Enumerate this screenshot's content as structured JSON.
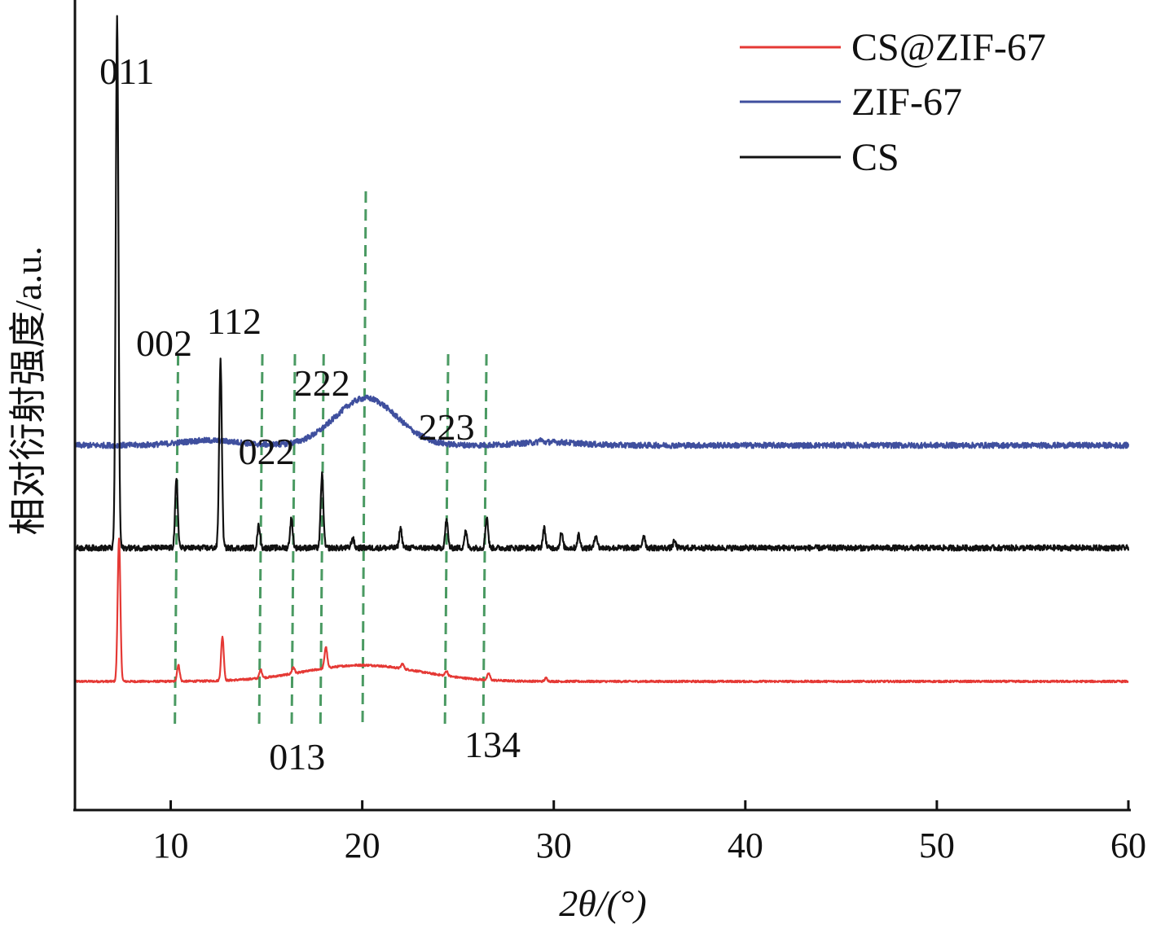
{
  "chart_data": {
    "type": "line",
    "title": "",
    "xlabel": "2θ/(°)",
    "ylabel": "相对衍射强度/a.u.",
    "xlim": [
      5,
      60
    ],
    "xticks": [
      10,
      20,
      30,
      40,
      50,
      60
    ],
    "yticks_shown": false,
    "grid": false,
    "legend_position": "top-right",
    "series": [
      {
        "name": "CS@ZIF-67",
        "color": "#e53935",
        "baseline": 0.1,
        "peaks": [
          {
            "x": 7.3,
            "height": 0.88
          },
          {
            "x": 10.4,
            "height": 0.1
          },
          {
            "x": 12.7,
            "height": 0.27
          },
          {
            "x": 14.7,
            "height": 0.05
          },
          {
            "x": 16.4,
            "height": 0.04
          },
          {
            "x": 18.1,
            "height": 0.13
          },
          {
            "x": 22.1,
            "height": 0.03
          },
          {
            "x": 24.4,
            "height": 0.03
          },
          {
            "x": 26.6,
            "height": 0.04
          },
          {
            "x": 29.6,
            "height": 0.02
          }
        ],
        "humps": [
          {
            "x": 20.0,
            "height": 0.1,
            "width": 3.0
          }
        ]
      },
      {
        "name": "ZIF-67",
        "color": "#3f4f9e",
        "baseline": 1.55,
        "peaks": [
          {
            "x": 29.3,
            "height": 0.02
          }
        ],
        "humps": [
          {
            "x": 20.2,
            "height": 0.29,
            "width": 1.6
          },
          {
            "x": 12.0,
            "height": 0.03,
            "width": 1.5
          },
          {
            "x": 29.8,
            "height": 0.02,
            "width": 1.5
          }
        ]
      },
      {
        "name": "CS",
        "color": "#111111",
        "baseline": 0.92,
        "peaks": [
          {
            "x": 7.2,
            "height": 3.25
          },
          {
            "x": 10.3,
            "height": 0.42
          },
          {
            "x": 12.6,
            "height": 1.15
          },
          {
            "x": 14.6,
            "height": 0.14
          },
          {
            "x": 16.3,
            "height": 0.18
          },
          {
            "x": 17.9,
            "height": 0.45
          },
          {
            "x": 19.5,
            "height": 0.06
          },
          {
            "x": 22.0,
            "height": 0.12
          },
          {
            "x": 24.4,
            "height": 0.17
          },
          {
            "x": 25.4,
            "height": 0.1
          },
          {
            "x": 26.5,
            "height": 0.19
          },
          {
            "x": 29.5,
            "height": 0.12
          },
          {
            "x": 30.4,
            "height": 0.09
          },
          {
            "x": 31.3,
            "height": 0.08
          },
          {
            "x": 32.2,
            "height": 0.08
          },
          {
            "x": 34.7,
            "height": 0.08
          },
          {
            "x": 36.3,
            "height": 0.04
          }
        ],
        "humps": []
      }
    ],
    "reference_lines": [
      10.3,
      14.7,
      16.4,
      17.9,
      20.1,
      24.4,
      26.4
    ],
    "annotations": [
      {
        "text": "011",
        "x": 7.2
      },
      {
        "text": "002",
        "x": 10.0
      },
      {
        "text": "112",
        "x": 12.8
      },
      {
        "text": "022",
        "x": 15.0
      },
      {
        "text": "222",
        "x": 17.9
      },
      {
        "text": "223",
        "x": 24.4
      },
      {
        "text": "013",
        "x": 16.6
      },
      {
        "text": "134",
        "x": 26.8
      }
    ]
  }
}
